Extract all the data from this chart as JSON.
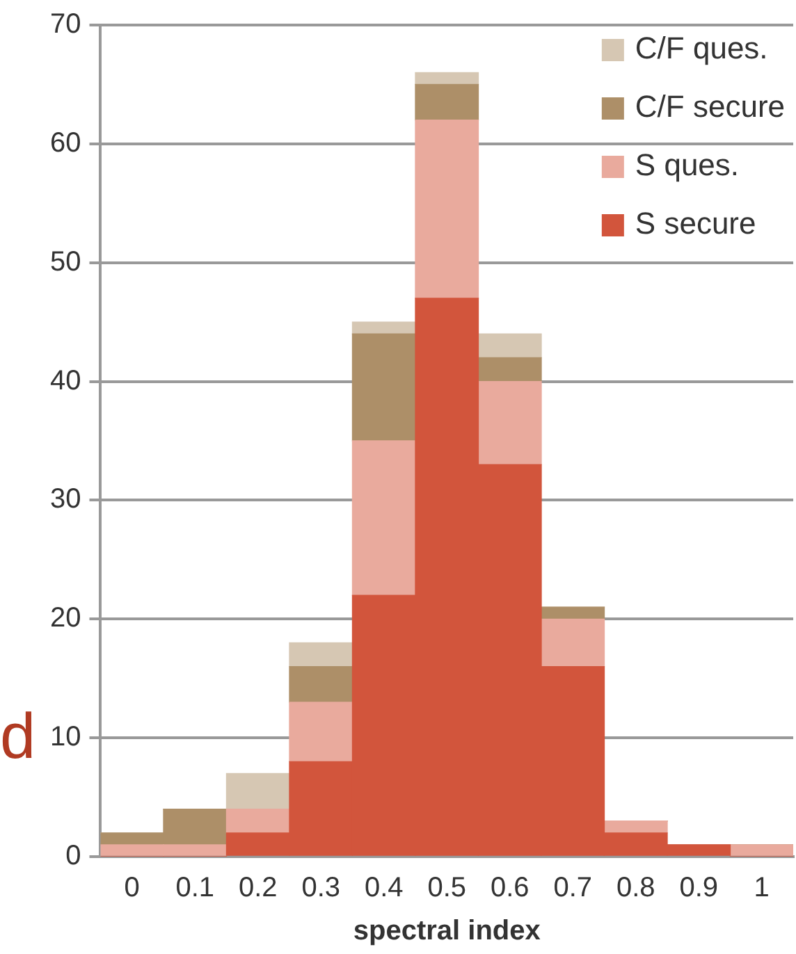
{
  "chart_data": {
    "type": "bar",
    "xlabel": "spectral index",
    "categories": [
      "0",
      "0.1",
      "0.2",
      "0.3",
      "0.4",
      "0.5",
      "0.6",
      "0.7",
      "0.8",
      "0.9",
      "1"
    ],
    "stacked": true,
    "series": [
      {
        "name": "S secure",
        "color": "#d2553c",
        "values": [
          0,
          0,
          2,
          8,
          22,
          47,
          33,
          16,
          2,
          1,
          0
        ]
      },
      {
        "name": "S ques.",
        "color": "#e9aa9d",
        "values": [
          1,
          1,
          2,
          5,
          13,
          15,
          7,
          4,
          1,
          0,
          1
        ]
      },
      {
        "name": "C/F secure",
        "color": "#ad8f68",
        "values": [
          1,
          3,
          0,
          3,
          9,
          3,
          2,
          1,
          0,
          0,
          0
        ]
      },
      {
        "name": "C/F ques.",
        "color": "#d6c7b3",
        "values": [
          0,
          0,
          3,
          2,
          1,
          1,
          2,
          0,
          0,
          0,
          0
        ]
      }
    ],
    "ylim": [
      0,
      70
    ],
    "yticks": [
      0,
      10,
      20,
      30,
      40,
      50,
      60,
      70
    ],
    "grid": "y",
    "legend": "top right",
    "annotations": [
      "d"
    ]
  }
}
